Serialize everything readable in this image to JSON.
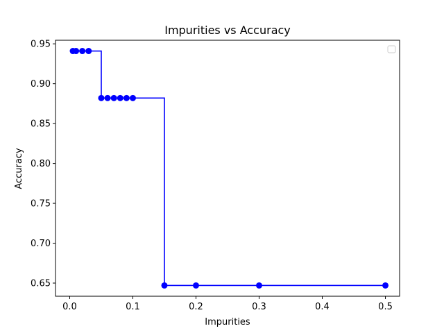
{
  "chart_data": {
    "type": "line",
    "title": "Impurities vs Accuracy",
    "xlabel": "Impurities",
    "ylabel": "Accuracy",
    "xlim": [
      -0.0225,
      0.5225
    ],
    "ylim": [
      0.6335,
      0.9545
    ],
    "xticks": [
      0.0,
      0.1,
      0.2,
      0.3,
      0.4,
      0.5
    ],
    "xtick_labels": [
      "0.0",
      "0.1",
      "0.2",
      "0.3",
      "0.4",
      "0.5"
    ],
    "yticks": [
      0.65,
      0.7,
      0.75,
      0.8,
      0.85,
      0.9,
      0.95
    ],
    "ytick_labels": [
      "0.65",
      "0.70",
      "0.75",
      "0.80",
      "0.85",
      "0.90",
      "0.95"
    ],
    "grid": false,
    "legend": {
      "placement": "top-right",
      "entries": []
    },
    "series": [
      {
        "step": "post",
        "marker": "circle",
        "color": "#0000ff",
        "x": [
          0.005,
          0.01,
          0.02,
          0.03,
          0.05,
          0.06,
          0.07,
          0.08,
          0.09,
          0.1,
          0.15,
          0.2,
          0.3,
          0.5
        ],
        "y": [
          0.941,
          0.941,
          0.941,
          0.941,
          0.882,
          0.882,
          0.882,
          0.882,
          0.882,
          0.882,
          0.647,
          0.647,
          0.647,
          0.647
        ]
      }
    ]
  }
}
